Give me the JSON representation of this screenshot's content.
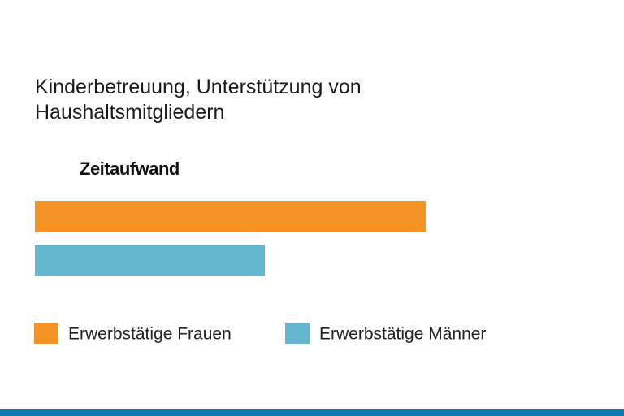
{
  "chart_data": {
    "type": "bar",
    "title": "Kinderbetreuung, Unterstützung von Haushaltsmitgliedern",
    "subtitle": "Zeitaufwand",
    "series": [
      {
        "name": "Erwerbstätige Frauen",
        "color": "#f39325",
        "values": [
          481
        ]
      },
      {
        "name": "Erwerbstätige Männer",
        "color": "#63b6cc",
        "values": [
          283
        ]
      }
    ]
  }
}
